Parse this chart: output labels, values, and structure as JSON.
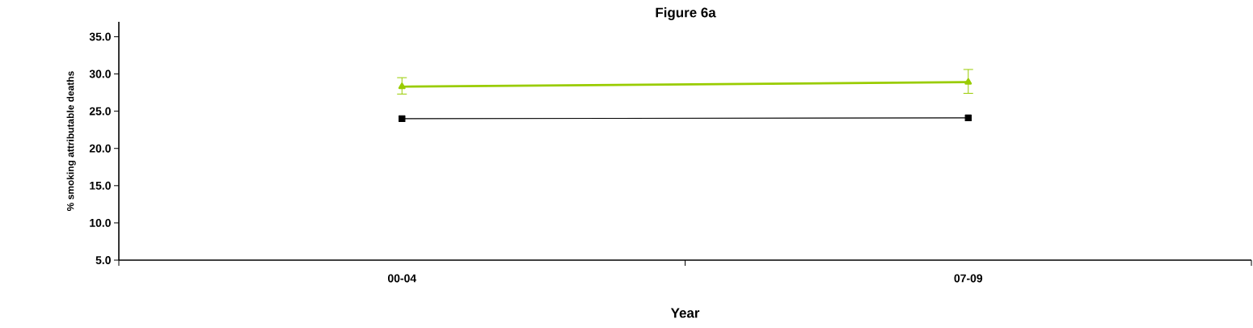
{
  "chart_data": {
    "type": "line",
    "title": "Figure 6a",
    "xlabel": "Year",
    "ylabel": "% smoking attributable deaths",
    "categories": [
      "00-04",
      "07-09"
    ],
    "series": [
      {
        "color": "#000000",
        "marker": "square",
        "values": [
          24.0,
          24.1
        ]
      },
      {
        "color": "#99cc00",
        "marker": "triangle",
        "values": [
          28.3,
          28.9
        ],
        "errors": [
          [
            27.3,
            29.5
          ],
          [
            27.4,
            30.6
          ]
        ]
      }
    ],
    "ylim": [
      5,
      37
    ],
    "yticks": [
      {
        "value": 5,
        "label": "5.0"
      },
      {
        "value": 10,
        "label": "10.0"
      },
      {
        "value": 15,
        "label": "15.0"
      },
      {
        "value": 20,
        "label": "20.0"
      },
      {
        "value": 25,
        "label": "25.0"
      },
      {
        "value": 30,
        "label": "30.0"
      },
      {
        "value": 35,
        "label": "35.0"
      }
    ],
    "grid": false,
    "legend": false
  }
}
